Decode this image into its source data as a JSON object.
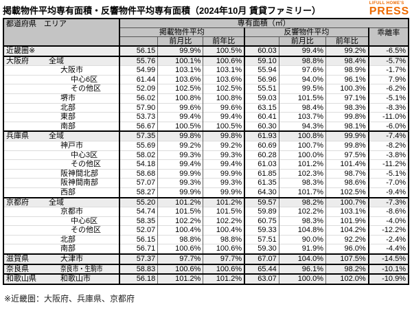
{
  "logo": {
    "top": "LIFULL HOME'S",
    "main": "PRESS",
    "color": "#ED6A00"
  },
  "chart_data": {
    "type": "table",
    "title": "掲載物件平均専有面積・反響物件平均専有面積（2024年10月 賃貸ファミリー）",
    "footnote": "※近畿圏：大阪府、兵庫県、京都府",
    "header": {
      "pref_area": "都道府県　エリア",
      "floor_area": "専有面積（㎡）",
      "listed_avg": "掲載物件平均",
      "response_avg": "反響物件平均",
      "mom": "前月比",
      "yoy": "前年比",
      "deviation": "乖離率"
    },
    "columns": [
      "都道府県・エリア",
      "掲載物件平均",
      "掲載前月比",
      "掲載前年比",
      "反響物件平均",
      "反響前月比",
      "反響前年比",
      "乖離率"
    ],
    "rows": [
      {
        "pref": "近畿圏※",
        "area": "",
        "indent": 0,
        "summary": true,
        "group_start": false,
        "values": [
          "56.15",
          "99.9%",
          "100.5%",
          "60.03",
          "99.4%",
          "99.2%",
          "-6.5%"
        ]
      },
      {
        "pref": "大阪府",
        "area": "全域",
        "indent": 0,
        "summary": true,
        "group_start": true,
        "values": [
          "55.76",
          "100.1%",
          "100.6%",
          "59.10",
          "98.8%",
          "98.4%",
          "-5.7%"
        ]
      },
      {
        "pref": "",
        "area": "大阪市",
        "indent": 1,
        "summary": false,
        "group_start": false,
        "values": [
          "54.99",
          "103.1%",
          "103.1%",
          "55.94",
          "97.6%",
          "98.9%",
          "-1.7%"
        ]
      },
      {
        "pref": "",
        "area": "中心6区",
        "indent": 2,
        "summary": false,
        "group_start": false,
        "values": [
          "61.44",
          "103.6%",
          "103.6%",
          "56.96",
          "94.0%",
          "96.1%",
          "7.9%"
        ]
      },
      {
        "pref": "",
        "area": "その他区",
        "indent": 2,
        "summary": false,
        "group_start": false,
        "values": [
          "52.09",
          "102.5%",
          "102.5%",
          "55.51",
          "99.5%",
          "100.3%",
          "-6.2%"
        ]
      },
      {
        "pref": "",
        "area": "堺市",
        "indent": 1,
        "summary": false,
        "group_start": false,
        "values": [
          "56.02",
          "100.8%",
          "100.8%",
          "59.03",
          "101.5%",
          "97.1%",
          "-5.1%"
        ]
      },
      {
        "pref": "",
        "area": "北部",
        "indent": 1,
        "summary": false,
        "group_start": false,
        "values": [
          "57.90",
          "99.6%",
          "99.6%",
          "63.15",
          "98.4%",
          "98.3%",
          "-8.3%"
        ]
      },
      {
        "pref": "",
        "area": "東部",
        "indent": 1,
        "summary": false,
        "group_start": false,
        "values": [
          "53.73",
          "99.4%",
          "99.4%",
          "60.41",
          "103.7%",
          "99.8%",
          "-11.0%"
        ]
      },
      {
        "pref": "",
        "area": "南部",
        "indent": 1,
        "summary": false,
        "group_start": false,
        "values": [
          "56.67",
          "100.5%",
          "100.5%",
          "60.30",
          "94.3%",
          "98.1%",
          "-6.0%"
        ]
      },
      {
        "pref": "兵庫県",
        "area": "全域",
        "indent": 0,
        "summary": true,
        "group_start": true,
        "values": [
          "57.35",
          "99.8%",
          "99.8%",
          "61.93",
          "100.8%",
          "99.9%",
          "-7.4%"
        ]
      },
      {
        "pref": "",
        "area": "神戸市",
        "indent": 1,
        "summary": false,
        "group_start": false,
        "values": [
          "55.69",
          "99.2%",
          "99.2%",
          "60.69",
          "100.7%",
          "99.8%",
          "-8.2%"
        ]
      },
      {
        "pref": "",
        "area": "中心3区",
        "indent": 2,
        "summary": false,
        "group_start": false,
        "values": [
          "58.02",
          "99.3%",
          "99.3%",
          "60.28",
          "100.0%",
          "97.5%",
          "-3.8%"
        ]
      },
      {
        "pref": "",
        "area": "その他区",
        "indent": 2,
        "summary": false,
        "group_start": false,
        "values": [
          "54.18",
          "99.4%",
          "99.4%",
          "61.03",
          "101.2%",
          "101.4%",
          "-11.2%"
        ]
      },
      {
        "pref": "",
        "area": "阪神間北部",
        "indent": 1,
        "summary": false,
        "group_start": false,
        "values": [
          "58.68",
          "99.9%",
          "99.9%",
          "61.85",
          "102.3%",
          "98.7%",
          "-5.1%"
        ]
      },
      {
        "pref": "",
        "area": "阪神間南部",
        "indent": 1,
        "summary": false,
        "group_start": false,
        "values": [
          "57.07",
          "99.3%",
          "99.3%",
          "61.35",
          "98.3%",
          "98.6%",
          "-7.0%"
        ]
      },
      {
        "pref": "",
        "area": "西部",
        "indent": 1,
        "summary": false,
        "group_start": false,
        "values": [
          "58.27",
          "99.9%",
          "99.9%",
          "64.30",
          "101.7%",
          "102.5%",
          "-9.4%"
        ]
      },
      {
        "pref": "京都府",
        "area": "全域",
        "indent": 0,
        "summary": true,
        "group_start": true,
        "values": [
          "55.20",
          "101.2%",
          "101.2%",
          "59.57",
          "98.2%",
          "100.7%",
          "-7.3%"
        ]
      },
      {
        "pref": "",
        "area": "京都市",
        "indent": 1,
        "summary": false,
        "group_start": false,
        "values": [
          "54.74",
          "101.5%",
          "101.5%",
          "59.89",
          "102.2%",
          "103.1%",
          "-8.6%"
        ]
      },
      {
        "pref": "",
        "area": "中心6区",
        "indent": 2,
        "summary": false,
        "group_start": false,
        "values": [
          "58.35",
          "102.2%",
          "102.2%",
          "60.75",
          "98.3%",
          "101.9%",
          "-4.0%"
        ]
      },
      {
        "pref": "",
        "area": "その他区",
        "indent": 2,
        "summary": false,
        "group_start": false,
        "values": [
          "52.07",
          "100.4%",
          "100.4%",
          "59.33",
          "104.8%",
          "104.2%",
          "-12.2%"
        ]
      },
      {
        "pref": "",
        "area": "北部",
        "indent": 1,
        "summary": false,
        "group_start": false,
        "values": [
          "56.15",
          "98.8%",
          "98.8%",
          "57.51",
          "90.0%",
          "92.2%",
          "-2.4%"
        ]
      },
      {
        "pref": "",
        "area": "南部",
        "indent": 1,
        "summary": false,
        "group_start": false,
        "values": [
          "56.71",
          "100.6%",
          "100.6%",
          "59.30",
          "91.9%",
          "96.0%",
          "-4.4%"
        ]
      },
      {
        "pref": "滋賀県",
        "area": "大津市",
        "indent": 1,
        "summary": true,
        "group_start": true,
        "values": [
          "57.37",
          "97.7%",
          "97.7%",
          "67.07",
          "104.0%",
          "107.5%",
          "-14.5%"
        ]
      },
      {
        "pref": "奈良県",
        "area": "奈良市・生駒市",
        "indent": 1,
        "summary": true,
        "group_start": true,
        "shrink": true,
        "values": [
          "58.83",
          "100.6%",
          "100.6%",
          "65.44",
          "96.1%",
          "98.2%",
          "-10.1%"
        ]
      },
      {
        "pref": "和歌山県",
        "area": "和歌山市",
        "indent": 1,
        "summary": true,
        "group_start": true,
        "values": [
          "56.18",
          "101.2%",
          "101.2%",
          "63.07",
          "100.0%",
          "102.0%",
          "-10.9%"
        ]
      }
    ]
  }
}
